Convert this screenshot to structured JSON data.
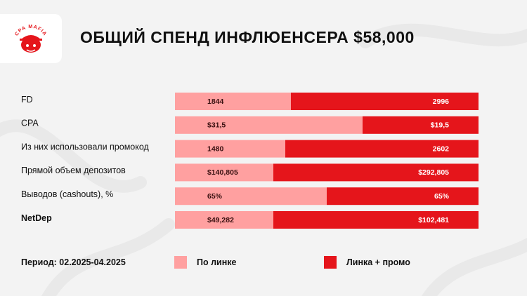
{
  "title": "ОБЩИЙ СПЕНД ИНФЛЮЕНСЕРА $58,000",
  "logo": {
    "text": "CPA MAFIA",
    "icon": "mafia-mascot-icon"
  },
  "period": "Период: 02.2025-04.2025",
  "colors": {
    "light": "#ffa0a0",
    "dark": "#e5151b",
    "background": "#f3f3f3"
  },
  "chart_data": {
    "type": "bar",
    "orientation": "horizontal",
    "stacked": true,
    "normalized": true,
    "categories": [
      "FD",
      "CPA",
      "Из них использовали промокод",
      "Прямой объем депозитов",
      "Выводов (cashouts), %",
      "NetDep"
    ],
    "series": [
      {
        "name": "По линке",
        "color": "#ffa0a0",
        "values": [
          1844,
          31.5,
          1480,
          140805,
          65,
          49282
        ],
        "labels": [
          "1844",
          "$31,5",
          "1480",
          "$140,805",
          "65%",
          "$49,282"
        ]
      },
      {
        "name": "Линка + промо",
        "color": "#e5151b",
        "values": [
          2996,
          19.5,
          2602,
          292805,
          65,
          102481
        ],
        "labels": [
          "2996",
          "$19,5",
          "2602",
          "$292,805",
          "65%",
          "$102,481"
        ]
      }
    ],
    "legend": "bottom"
  }
}
